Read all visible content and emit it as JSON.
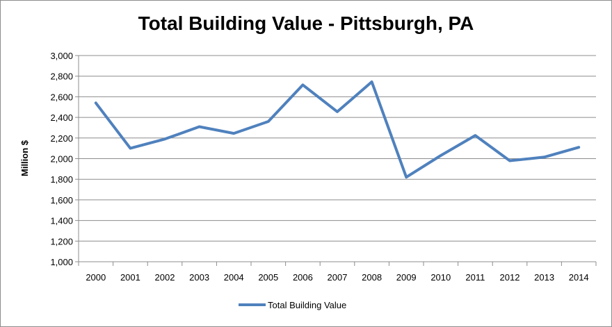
{
  "chart_data": {
    "type": "line",
    "title": "Total Building Value - Pittsburgh, PA",
    "xlabel": "",
    "ylabel": "Million $",
    "ylim": [
      1000,
      3000
    ],
    "ytick_step": 200,
    "y_ticks": [
      "1,000",
      "1,200",
      "1,400",
      "1,600",
      "1,800",
      "2,000",
      "2,200",
      "2,400",
      "2,600",
      "2,800",
      "3,000"
    ],
    "categories": [
      "2000",
      "2001",
      "2002",
      "2003",
      "2004",
      "2005",
      "2006",
      "2007",
      "2008",
      "2009",
      "2010",
      "2011",
      "2012",
      "2013",
      "2014"
    ],
    "series": [
      {
        "name": "Total Building Value",
        "color": "#4f81bd",
        "values": [
          2540,
          2100,
          2190,
          2310,
          2245,
          2360,
          2715,
          2455,
          2745,
          1820,
          2030,
          2225,
          1980,
          2015,
          2110
        ]
      }
    ],
    "grid": true,
    "legend_position": "bottom"
  }
}
